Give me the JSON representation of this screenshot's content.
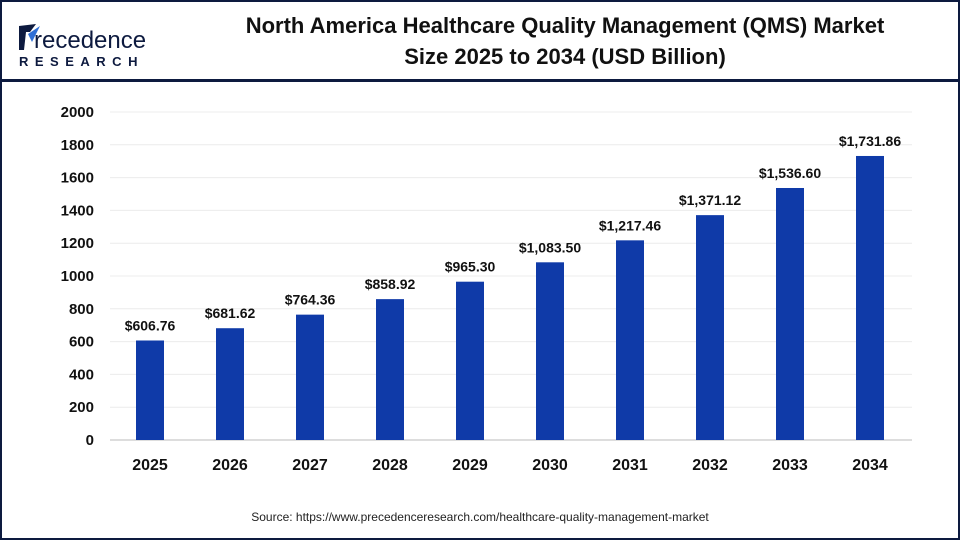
{
  "logo": {
    "text_main": "Precedence",
    "text_sub": "RESEARCH"
  },
  "title_line1": "North America Healthcare Quality Management (QMS) Market",
  "title_line2": "Size 2025 to 2034 (USD Billion)",
  "source": "Source: https://www.precedenceresearch.com/healthcare-quality-management-market",
  "chart_data": {
    "type": "bar",
    "title": "North America Healthcare Quality Management (QMS) Market Size 2025 to 2034 (USD Billion)",
    "categories": [
      "2025",
      "2026",
      "2027",
      "2028",
      "2029",
      "2030",
      "2031",
      "2032",
      "2033",
      "2034"
    ],
    "values": [
      606.76,
      681.62,
      764.36,
      858.92,
      965.3,
      1083.5,
      1217.46,
      1371.12,
      1536.6,
      1731.86
    ],
    "labels": [
      "$606.76",
      "$681.62",
      "$764.36",
      "$858.92",
      "$965.30",
      "$1,083.50",
      "$1,217.46",
      "$1,371.12",
      "$1,536.60",
      "$1,731.86"
    ],
    "yticks": [
      "0",
      "200",
      "400",
      "600",
      "800",
      "1000",
      "1200",
      "1400",
      "1600",
      "1800",
      "2000"
    ],
    "ylim": [
      0,
      2000
    ],
    "grid": true,
    "bar_color": "#0f3aa8"
  }
}
